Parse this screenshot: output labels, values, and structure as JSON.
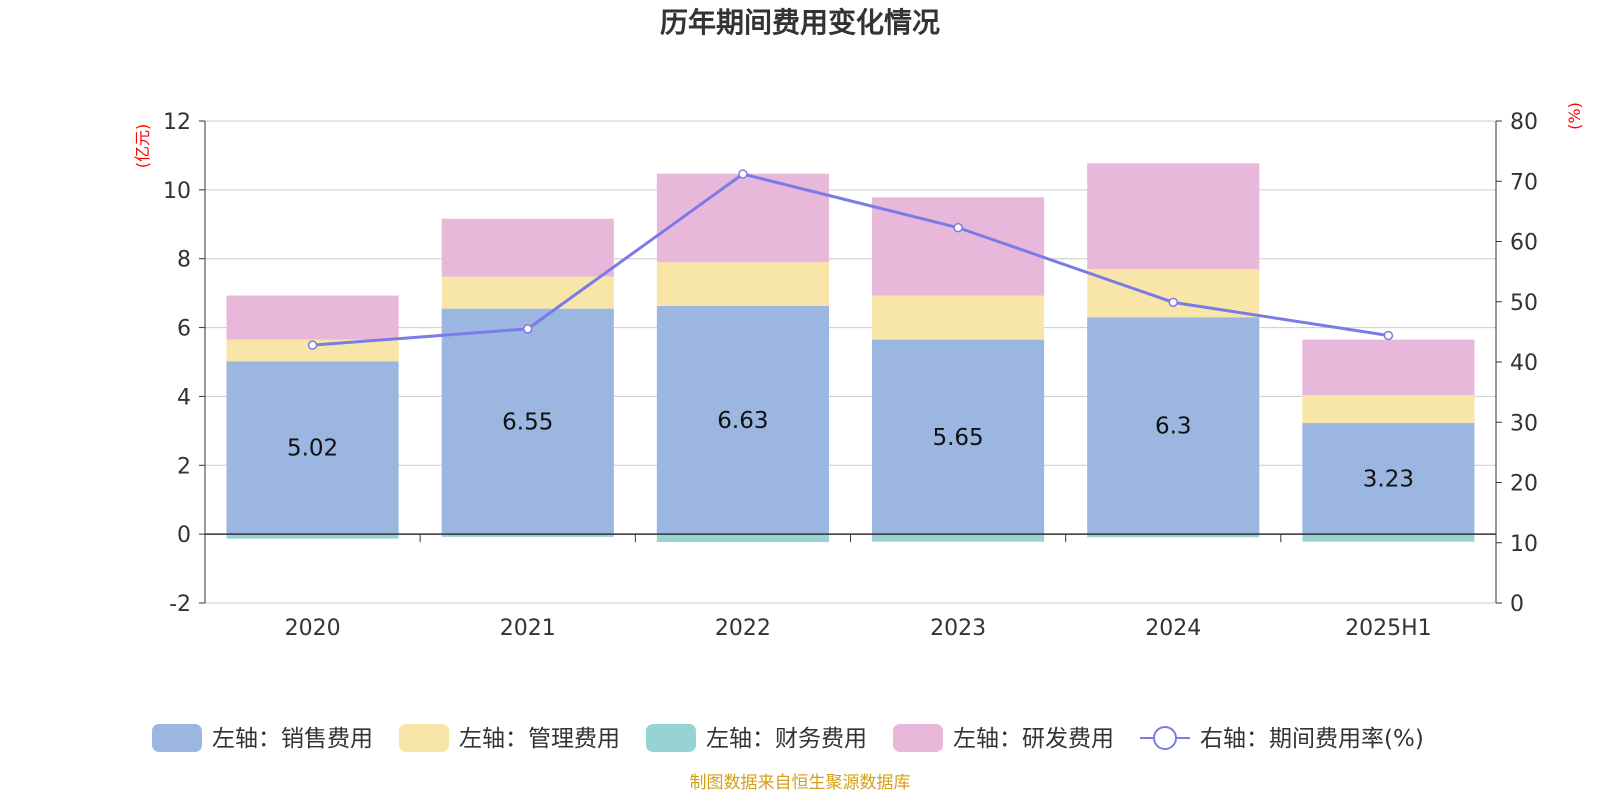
{
  "chart_data": {
    "type": "bar",
    "title": "历年期间费用变化情况",
    "categories": [
      "2020",
      "2021",
      "2022",
      "2023",
      "2024",
      "2025H1"
    ],
    "left_axis": {
      "unit": "(亿元)",
      "ylim": [
        -2,
        12
      ],
      "ticks": [
        -2,
        0,
        2,
        4,
        6,
        8,
        10,
        12
      ]
    },
    "right_axis": {
      "unit": "(%)",
      "ylim": [
        0,
        80
      ],
      "ticks": [
        0,
        10,
        20,
        30,
        40,
        50,
        60,
        70,
        80
      ]
    },
    "grid": true,
    "stacked": true,
    "legend_position": "bottom",
    "series": [
      {
        "name": "左轴：销售费用",
        "type": "bar",
        "axis": "left",
        "color": "#9bb6e1",
        "values": [
          5.02,
          6.55,
          6.63,
          5.65,
          6.3,
          3.23
        ],
        "labels_shown": true
      },
      {
        "name": "左轴：管理费用",
        "type": "bar",
        "axis": "left",
        "color": "#f8e6a8",
        "values": [
          0.63,
          0.93,
          1.27,
          1.28,
          1.4,
          0.81
        ]
      },
      {
        "name": "左轴：财务费用",
        "type": "bar",
        "axis": "left",
        "color": "#97d3d4",
        "values": [
          -0.13,
          -0.08,
          -0.23,
          -0.22,
          -0.09,
          -0.22
        ]
      },
      {
        "name": "左轴：研发费用",
        "type": "bar",
        "axis": "left",
        "color": "#e8b8da",
        "values": [
          1.28,
          1.68,
          2.57,
          2.85,
          3.07,
          1.61
        ]
      },
      {
        "name": "右轴：期间费用率(%)",
        "type": "line",
        "axis": "right",
        "color": "#7b7be8",
        "values": [
          42.8,
          45.5,
          71.2,
          62.3,
          49.9,
          44.4
        ]
      }
    ]
  },
  "footer": "制图数据来自恒生聚源数据库"
}
